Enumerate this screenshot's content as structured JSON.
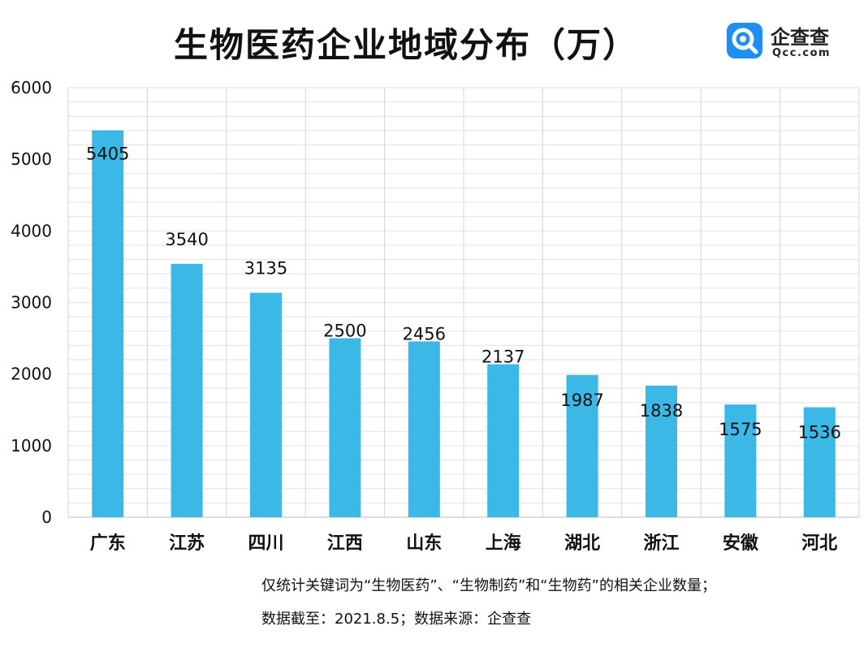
{
  "title": "生物医药企业地域分布（万）",
  "logo": {
    "name_cn": "企查查",
    "name_en": "Qcc.com",
    "icon": "qcc-magnifier-icon",
    "color": "#1f8ef1"
  },
  "footnote": {
    "line1": "仅统计关键词为“生物医药”、“生物制药”和“生物药”的相关企业数量；",
    "line2": "数据截至：2021.8.5；数据来源：企查查"
  },
  "chart_data": {
    "type": "bar",
    "title": "生物医药企业地域分布（万）",
    "categories": [
      "广东",
      "江苏",
      "四川",
      "江西",
      "山东",
      "上海",
      "湖北",
      "浙江",
      "安徽",
      "河北"
    ],
    "values": [
      5405,
      3540,
      3135,
      2500,
      2456,
      2137,
      1987,
      1838,
      1575,
      1536
    ],
    "yticks": [
      "0",
      "1000",
      "2000",
      "3000",
      "4000",
      "5000",
      "6000"
    ],
    "ylim": [
      0,
      6000
    ],
    "minor_grid_step": 200,
    "bar_color": "#3bb8e6",
    "xlabel": "",
    "ylabel": ""
  }
}
